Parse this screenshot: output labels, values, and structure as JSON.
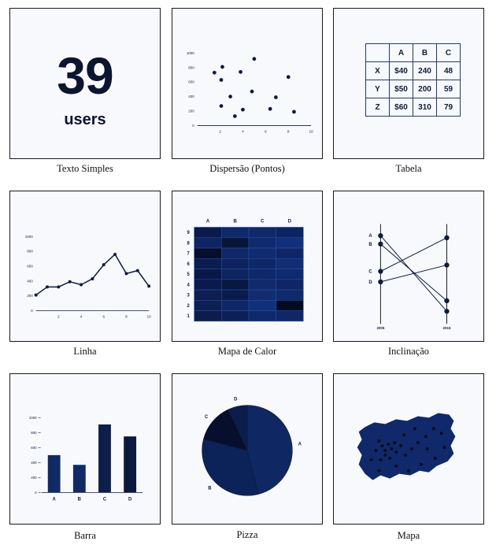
{
  "tiles": {
    "text": {
      "caption": "Texto Simples",
      "number": "39",
      "unit": "users"
    },
    "scatter": {
      "caption": "Dispersão (Pontos)",
      "chart_data": {
        "type": "scatter",
        "xticks": [
          "2",
          "4",
          "6",
          "8",
          "10"
        ],
        "yticks": [
          "0",
          "200",
          "400",
          "600",
          "800",
          "1000"
        ],
        "xlim": [
          0,
          10
        ],
        "ylim": [
          0,
          1000
        ],
        "points": [
          [
            1.5,
            730
          ],
          [
            2.1,
            630
          ],
          [
            2.2,
            810
          ],
          [
            2.1,
            270
          ],
          [
            2.9,
            400
          ],
          [
            3.3,
            130
          ],
          [
            3.8,
            740
          ],
          [
            4.0,
            220
          ],
          [
            4.8,
            470
          ],
          [
            5.0,
            920
          ],
          [
            6.4,
            230
          ],
          [
            6.9,
            390
          ],
          [
            8.0,
            670
          ],
          [
            8.5,
            190
          ]
        ]
      }
    },
    "table": {
      "caption": "Tabela",
      "header": [
        "",
        "A",
        "B",
        "C"
      ],
      "rows": [
        [
          "X",
          "$40",
          "240",
          "48"
        ],
        [
          "Y",
          "$50",
          "200",
          "59"
        ],
        [
          "Z",
          "$60",
          "310",
          "79"
        ]
      ]
    },
    "line": {
      "caption": "Linha",
      "chart_data": {
        "type": "line",
        "xticks": [
          "2",
          "4",
          "6",
          "8",
          "10"
        ],
        "yticks": [
          "0",
          "200",
          "400",
          "600",
          "800",
          "1000"
        ],
        "xlim": [
          0,
          10
        ],
        "ylim": [
          0,
          1000
        ],
        "x": [
          0,
          1,
          2,
          3,
          4,
          5,
          6,
          7,
          8,
          9,
          10
        ],
        "values": [
          210,
          320,
          320,
          390,
          350,
          430,
          620,
          760,
          500,
          540,
          330
        ]
      }
    },
    "heatmap": {
      "caption": "Mapa de Calor",
      "chart_data": {
        "type": "heatmap",
        "columns": [
          "A",
          "B",
          "C",
          "D"
        ],
        "rows": [
          "9",
          "8",
          "7",
          "6",
          "5",
          "4",
          "3",
          "2",
          "1"
        ],
        "colors": [
          [
            "#0a1a4a",
            "#0f2a6a",
            "#10296b",
            "#0c2464"
          ],
          [
            "#0e2463",
            "#071536",
            "#0f2a6e",
            "#12307a"
          ],
          [
            "#050f2c",
            "#0f2968",
            "#102c6e",
            "#0e2666"
          ],
          [
            "#0b1c50",
            "#0d2360",
            "#0e2767",
            "#112e72"
          ],
          [
            "#091846",
            "#0d245e",
            "#0e2868",
            "#0f2b6d"
          ],
          [
            "#0a1a4c",
            "#081841",
            "#102b6c",
            "#0e2666"
          ],
          [
            "#0c1e52",
            "#0a1c4e",
            "#112d70",
            "#0f2a6a"
          ],
          [
            "#0d2054",
            "#0f2766",
            "#123079",
            "#040a20"
          ],
          [
            "#0b1c4d",
            "#0c1f58",
            "#0f2a6b",
            "#0e2766"
          ]
        ]
      }
    },
    "slope": {
      "caption": "Inclinação",
      "chart_data": {
        "type": "slope",
        "x_labels": [
          "2005",
          "2015"
        ],
        "series": [
          {
            "name": "A",
            "start": 8.4,
            "end": 1.2
          },
          {
            "name": "B",
            "start": 7.6,
            "end": 2.2
          },
          {
            "name": "C",
            "start": 5.0,
            "end": 8.2
          },
          {
            "name": "D",
            "start": 4.0,
            "end": 5.6
          }
        ]
      }
    },
    "bar": {
      "caption": "Barra",
      "chart_data": {
        "type": "bar",
        "categories": [
          "A",
          "B",
          "C",
          "D"
        ],
        "values": [
          500,
          370,
          910,
          750
        ],
        "yticks": [
          "0",
          "200",
          "400",
          "600",
          "800",
          "1000"
        ],
        "ylim": [
          0,
          1000
        ],
        "colors": [
          "#0f2a66",
          "#0f2a66",
          "#0c1e4a",
          "#0a1a3e"
        ]
      }
    },
    "pie": {
      "caption": "Pizza",
      "chart_data": {
        "type": "pie",
        "labels": [
          "A",
          "B",
          "C",
          "D"
        ],
        "values": [
          46,
          33,
          14,
          7
        ],
        "colors": [
          "#0f2763",
          "#0c2359",
          "#060f2e",
          "#0b1e4b"
        ]
      }
    },
    "map": {
      "caption": "Mapa"
    }
  }
}
